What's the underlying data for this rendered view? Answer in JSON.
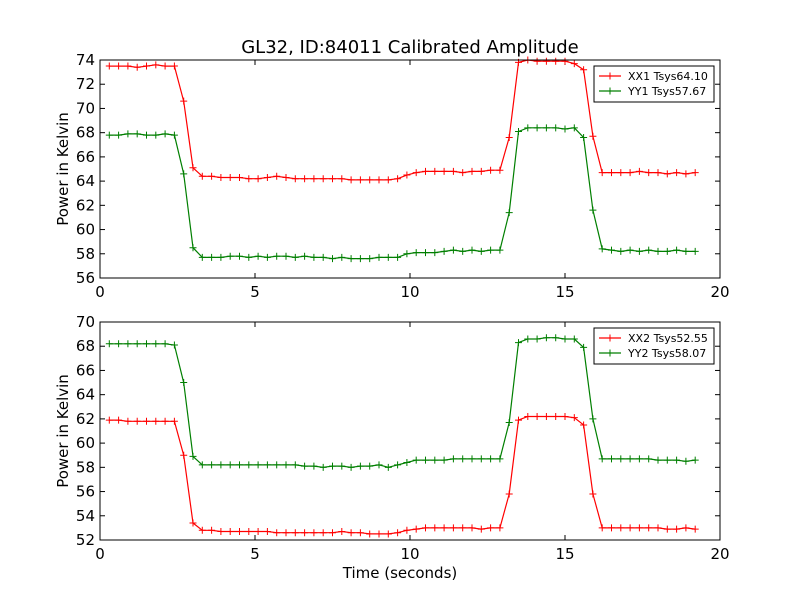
{
  "title": "GL32, ID:84011 Calibrated Amplitude",
  "colors": {
    "red": "#ff0000",
    "green": "#007f00"
  },
  "chart_data": [
    {
      "type": "line",
      "ylabel": "Power in Kelvin",
      "xlabel": "",
      "xlim": [
        0,
        20
      ],
      "ylim": [
        56,
        74
      ],
      "xticks": [
        0,
        5,
        10,
        15,
        20
      ],
      "yticks": [
        56,
        58,
        60,
        62,
        64,
        66,
        68,
        70,
        72,
        74
      ],
      "legend": "top-right",
      "grid": false,
      "x": [
        0.3,
        0.6,
        0.9,
        1.2,
        1.5,
        1.8,
        2.1,
        2.4,
        2.7,
        3.0,
        3.3,
        3.6,
        3.9,
        4.2,
        4.5,
        4.8,
        5.1,
        5.4,
        5.7,
        6.0,
        6.3,
        6.6,
        6.9,
        7.2,
        7.5,
        7.8,
        8.1,
        8.4,
        8.7,
        9.0,
        9.3,
        9.6,
        9.9,
        10.2,
        10.5,
        10.8,
        11.1,
        11.4,
        11.7,
        12.0,
        12.3,
        12.6,
        12.9,
        13.2,
        13.5,
        13.8,
        14.1,
        14.4,
        14.7,
        15.0,
        15.3,
        15.6,
        15.9,
        16.2,
        16.5,
        16.8,
        17.1,
        17.4,
        17.7,
        18.0,
        18.3,
        18.6,
        18.9,
        19.2
      ],
      "series": [
        {
          "name": "XX1 Tsys64.10",
          "color": "red",
          "values": [
            73.5,
            73.5,
            73.5,
            73.4,
            73.5,
            73.6,
            73.5,
            73.5,
            70.6,
            65.1,
            64.4,
            64.4,
            64.3,
            64.3,
            64.3,
            64.2,
            64.2,
            64.3,
            64.4,
            64.3,
            64.2,
            64.2,
            64.2,
            64.2,
            64.2,
            64.2,
            64.1,
            64.1,
            64.1,
            64.1,
            64.1,
            64.2,
            64.5,
            64.7,
            64.8,
            64.8,
            64.8,
            64.8,
            64.7,
            64.8,
            64.8,
            64.9,
            64.9,
            67.6,
            73.8,
            74.0,
            73.9,
            73.9,
            73.9,
            73.9,
            73.7,
            73.2,
            67.7,
            64.7,
            64.7,
            64.7,
            64.7,
            64.8,
            64.7,
            64.7,
            64.6,
            64.7,
            64.6,
            64.7
          ]
        },
        {
          "name": "YY1 Tsys57.67",
          "color": "green",
          "values": [
            67.8,
            67.8,
            67.9,
            67.9,
            67.8,
            67.8,
            67.9,
            67.8,
            64.6,
            58.5,
            57.7,
            57.7,
            57.7,
            57.8,
            57.8,
            57.7,
            57.8,
            57.7,
            57.8,
            57.8,
            57.7,
            57.8,
            57.7,
            57.7,
            57.6,
            57.7,
            57.6,
            57.6,
            57.6,
            57.7,
            57.7,
            57.7,
            58.0,
            58.1,
            58.1,
            58.1,
            58.2,
            58.3,
            58.2,
            58.3,
            58.2,
            58.3,
            58.3,
            61.4,
            68.1,
            68.4,
            68.4,
            68.4,
            68.4,
            68.3,
            68.4,
            67.6,
            61.6,
            58.4,
            58.3,
            58.2,
            58.3,
            58.2,
            58.3,
            58.2,
            58.2,
            58.3,
            58.2,
            58.2
          ]
        }
      ]
    },
    {
      "type": "line",
      "ylabel": "Power in Kelvin",
      "xlabel": "Time (seconds)",
      "xlim": [
        0,
        20
      ],
      "ylim": [
        52,
        70
      ],
      "xticks": [
        0,
        5,
        10,
        15,
        20
      ],
      "yticks": [
        52,
        54,
        56,
        58,
        60,
        62,
        64,
        66,
        68,
        70
      ],
      "legend": "top-right",
      "grid": false,
      "x": [
        0.3,
        0.6,
        0.9,
        1.2,
        1.5,
        1.8,
        2.1,
        2.4,
        2.7,
        3.0,
        3.3,
        3.6,
        3.9,
        4.2,
        4.5,
        4.8,
        5.1,
        5.4,
        5.7,
        6.0,
        6.3,
        6.6,
        6.9,
        7.2,
        7.5,
        7.8,
        8.1,
        8.4,
        8.7,
        9.0,
        9.3,
        9.6,
        9.9,
        10.2,
        10.5,
        10.8,
        11.1,
        11.4,
        11.7,
        12.0,
        12.3,
        12.6,
        12.9,
        13.2,
        13.5,
        13.8,
        14.1,
        14.4,
        14.7,
        15.0,
        15.3,
        15.6,
        15.9,
        16.2,
        16.5,
        16.8,
        17.1,
        17.4,
        17.7,
        18.0,
        18.3,
        18.6,
        18.9,
        19.2
      ],
      "series": [
        {
          "name": "XX2 Tsys52.55",
          "color": "red",
          "values": [
            61.9,
            61.9,
            61.8,
            61.8,
            61.8,
            61.8,
            61.8,
            61.8,
            59.0,
            53.4,
            52.8,
            52.8,
            52.7,
            52.7,
            52.7,
            52.7,
            52.7,
            52.7,
            52.6,
            52.6,
            52.6,
            52.6,
            52.6,
            52.6,
            52.6,
            52.7,
            52.6,
            52.6,
            52.5,
            52.5,
            52.5,
            52.6,
            52.8,
            52.9,
            53.0,
            53.0,
            53.0,
            53.0,
            53.0,
            53.0,
            52.9,
            53.0,
            53.0,
            55.8,
            61.9,
            62.2,
            62.2,
            62.2,
            62.2,
            62.2,
            62.1,
            61.5,
            55.8,
            53.0,
            53.0,
            53.0,
            53.0,
            53.0,
            53.0,
            53.0,
            52.9,
            52.9,
            53.0,
            52.9
          ]
        },
        {
          "name": "YY2 Tsys58.07",
          "color": "green",
          "values": [
            68.2,
            68.2,
            68.2,
            68.2,
            68.2,
            68.2,
            68.2,
            68.1,
            65.0,
            58.9,
            58.2,
            58.2,
            58.2,
            58.2,
            58.2,
            58.2,
            58.2,
            58.2,
            58.2,
            58.2,
            58.2,
            58.1,
            58.1,
            58.0,
            58.1,
            58.1,
            58.0,
            58.1,
            58.1,
            58.2,
            58.0,
            58.2,
            58.4,
            58.6,
            58.6,
            58.6,
            58.6,
            58.7,
            58.7,
            58.7,
            58.7,
            58.7,
            58.7,
            61.7,
            68.3,
            68.6,
            68.6,
            68.7,
            68.7,
            68.6,
            68.6,
            67.9,
            62.0,
            58.7,
            58.7,
            58.7,
            58.7,
            58.7,
            58.7,
            58.6,
            58.6,
            58.6,
            58.5,
            58.6
          ]
        }
      ]
    }
  ]
}
